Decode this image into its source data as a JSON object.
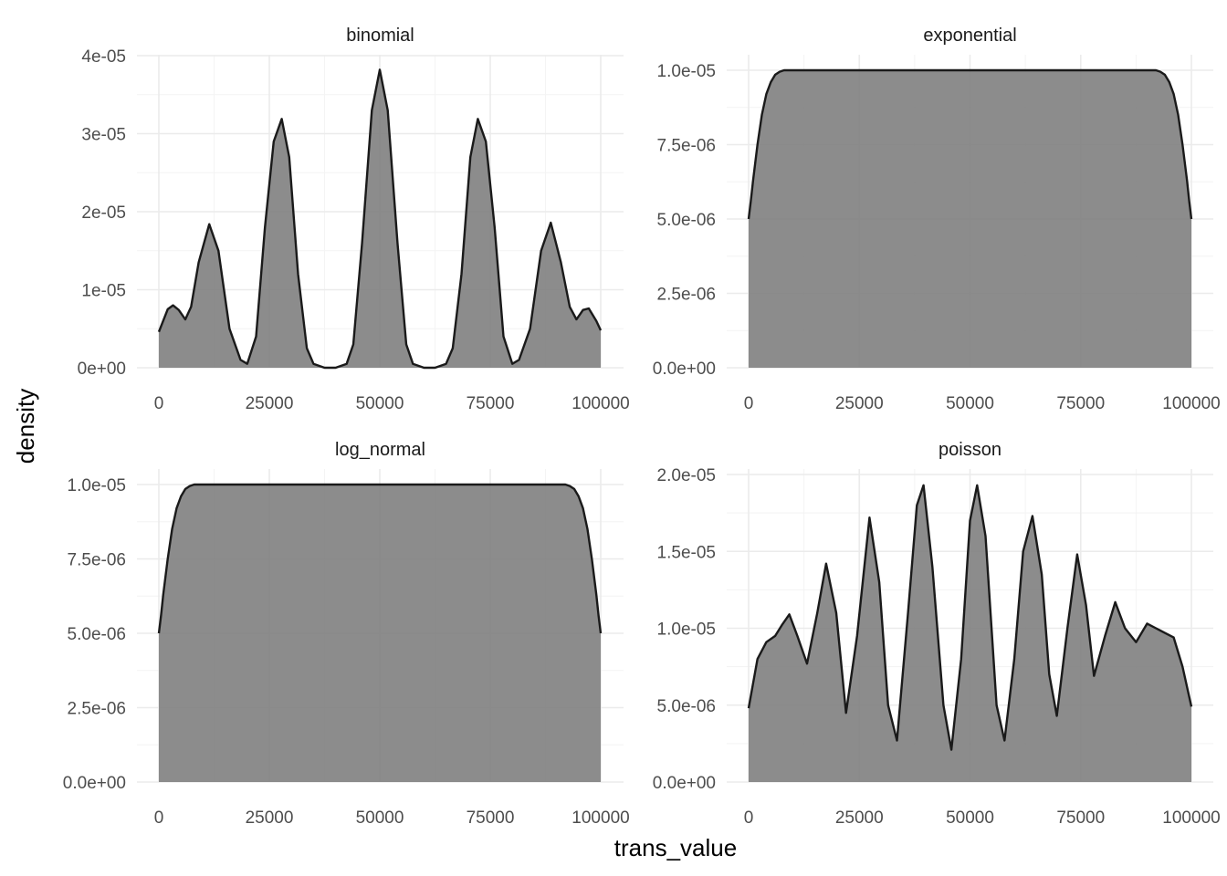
{
  "chart_data": {
    "type": "area",
    "xlabel": "trans_value",
    "ylabel": "density",
    "panels": [
      {
        "name": "binomial",
        "xlim": [
          0,
          100000
        ],
        "ylim": [
          0,
          4e-05
        ],
        "x_ticks": [
          0,
          25000,
          50000,
          75000,
          100000
        ],
        "x_tick_labels": [
          "0",
          "25000",
          "50000",
          "75000",
          "100000"
        ],
        "y_ticks": [
          0,
          1e-05,
          2e-05,
          3e-05,
          4e-05
        ],
        "y_tick_labels": [
          "0e+00",
          "1e-05",
          "2e-05",
          "3e-05",
          "4e-05"
        ],
        "x": [
          0,
          2000,
          3200,
          4500,
          6000,
          7300,
          9000,
          11400,
          13500,
          16000,
          18500,
          20000,
          22000,
          24000,
          26000,
          27800,
          29500,
          31500,
          33500,
          35000,
          37500,
          40000,
          42500,
          44000,
          46000,
          48200,
          50000,
          51800,
          54000,
          56000,
          57500,
          60000,
          62500,
          65000,
          66500,
          68500,
          70500,
          72200,
          74000,
          76000,
          78000,
          80000,
          81500,
          84000,
          86500,
          88700,
          91000,
          93000,
          94500,
          96000,
          97300,
          99000,
          100000
        ],
        "y": [
          4.6e-06,
          7.5e-06,
          8e-06,
          7.4e-06,
          6.2e-06,
          7.8e-06,
          1.35e-05,
          1.84e-05,
          1.5e-05,
          5e-06,
          1e-06,
          5e-07,
          4e-06,
          1.8e-05,
          2.9e-05,
          3.19e-05,
          2.7e-05,
          1.2e-05,
          2.5e-06,
          5e-07,
          0.0,
          0.0,
          5e-07,
          3e-06,
          1.6e-05,
          3.3e-05,
          3.82e-05,
          3.3e-05,
          1.6e-05,
          3e-06,
          5e-07,
          0.0,
          0.0,
          5e-07,
          2.5e-06,
          1.2e-05,
          2.7e-05,
          3.19e-05,
          2.9e-05,
          1.8e-05,
          4e-06,
          5e-07,
          1e-06,
          5e-06,
          1.5e-05,
          1.86e-05,
          1.35e-05,
          7.8e-06,
          6.2e-06,
          7.4e-06,
          7.6e-06,
          6e-06,
          4.8e-06
        ]
      },
      {
        "name": "exponential",
        "xlim": [
          0,
          100000
        ],
        "ylim": [
          0,
          1e-05
        ],
        "x_ticks": [
          0,
          25000,
          50000,
          75000,
          100000
        ],
        "x_tick_labels": [
          "0",
          "25000",
          "50000",
          "75000",
          "100000"
        ],
        "y_ticks": [
          0,
          2.5e-06,
          5e-06,
          7.5e-06,
          1e-05
        ],
        "y_tick_labels": [
          "0.0e+00",
          "2.5e-06",
          "5.0e-06",
          "7.5e-06",
          "1.0e-05"
        ],
        "x": [
          0,
          500,
          1000,
          2000,
          3000,
          4000,
          5000,
          6000,
          7000,
          8000,
          9000,
          91000,
          92000,
          93000,
          94000,
          95000,
          96000,
          97000,
          98000,
          99000,
          99500,
          100000
        ],
        "y": [
          5e-06,
          5.6e-06,
          6.3e-06,
          7.5e-06,
          8.5e-06,
          9.2e-06,
          9.6e-06,
          9.85e-06,
          9.95e-06,
          1e-05,
          1e-05,
          1e-05,
          1e-05,
          9.95e-06,
          9.85e-06,
          9.6e-06,
          9.2e-06,
          8.5e-06,
          7.5e-06,
          6.3e-06,
          5.6e-06,
          5e-06
        ]
      },
      {
        "name": "log_normal",
        "xlim": [
          0,
          100000
        ],
        "ylim": [
          0,
          1e-05
        ],
        "x_ticks": [
          0,
          25000,
          50000,
          75000,
          100000
        ],
        "x_tick_labels": [
          "0",
          "25000",
          "50000",
          "75000",
          "100000"
        ],
        "y_ticks": [
          0,
          2.5e-06,
          5e-06,
          7.5e-06,
          1e-05
        ],
        "y_tick_labels": [
          "0.0e+00",
          "2.5e-06",
          "5.0e-06",
          "7.5e-06",
          "1.0e-05"
        ],
        "x": [
          0,
          500,
          1000,
          2000,
          3000,
          4000,
          5000,
          6000,
          7000,
          8000,
          9000,
          91000,
          92000,
          93000,
          94000,
          95000,
          96000,
          97000,
          98000,
          99000,
          99500,
          100000
        ],
        "y": [
          5e-06,
          5.6e-06,
          6.3e-06,
          7.5e-06,
          8.5e-06,
          9.2e-06,
          9.6e-06,
          9.85e-06,
          9.95e-06,
          1e-05,
          1e-05,
          1e-05,
          1e-05,
          9.95e-06,
          9.85e-06,
          9.6e-06,
          9.2e-06,
          8.5e-06,
          7.5e-06,
          6.3e-06,
          5.6e-06,
          5e-06
        ]
      },
      {
        "name": "poisson",
        "xlim": [
          0,
          100000
        ],
        "ylim": [
          0,
          2e-05
        ],
        "x_ticks": [
          0,
          25000,
          50000,
          75000,
          100000
        ],
        "x_tick_labels": [
          "0",
          "25000",
          "50000",
          "75000",
          "100000"
        ],
        "y_ticks": [
          0,
          5e-06,
          1e-05,
          1.5e-05,
          2e-05
        ],
        "y_tick_labels": [
          "0.0e+00",
          "5.0e-06",
          "1.0e-05",
          "1.5e-05",
          "2.0e-05"
        ],
        "x": [
          0,
          2000,
          4000,
          6000,
          7500,
          9200,
          11000,
          13200,
          15500,
          17500,
          19800,
          22000,
          24500,
          27300,
          29500,
          31500,
          33500,
          36000,
          38000,
          39500,
          41500,
          44000,
          45800,
          48000,
          50000,
          51600,
          53500,
          56000,
          57800,
          60000,
          62000,
          64100,
          66200,
          67900,
          69600,
          72000,
          74200,
          76200,
          78000,
          80500,
          82800,
          85000,
          87500,
          90000,
          92000,
          94000,
          96000,
          98000,
          100000
        ],
        "y": [
          4.8e-06,
          8e-06,
          9.1e-06,
          9.5e-06,
          1.02e-05,
          1.09e-05,
          9.5e-06,
          7.7e-06,
          1.1e-05,
          1.42e-05,
          1.1e-05,
          4.5e-06,
          9.5e-06,
          1.72e-05,
          1.3e-05,
          5e-06,
          2.7e-06,
          1.1e-05,
          1.8e-05,
          1.93e-05,
          1.4e-05,
          5e-06,
          2.1e-06,
          8e-06,
          1.7e-05,
          1.93e-05,
          1.6e-05,
          5e-06,
          2.7e-06,
          8e-06,
          1.5e-05,
          1.73e-05,
          1.35e-05,
          7e-06,
          4.3e-06,
          1e-05,
          1.48e-05,
          1.15e-05,
          6.9e-06,
          9.5e-06,
          1.17e-05,
          1e-05,
          9.1e-06,
          1.03e-05,
          1e-05,
          9.7e-06,
          9.4e-06,
          7.5e-06,
          4.9e-06
        ]
      }
    ]
  }
}
